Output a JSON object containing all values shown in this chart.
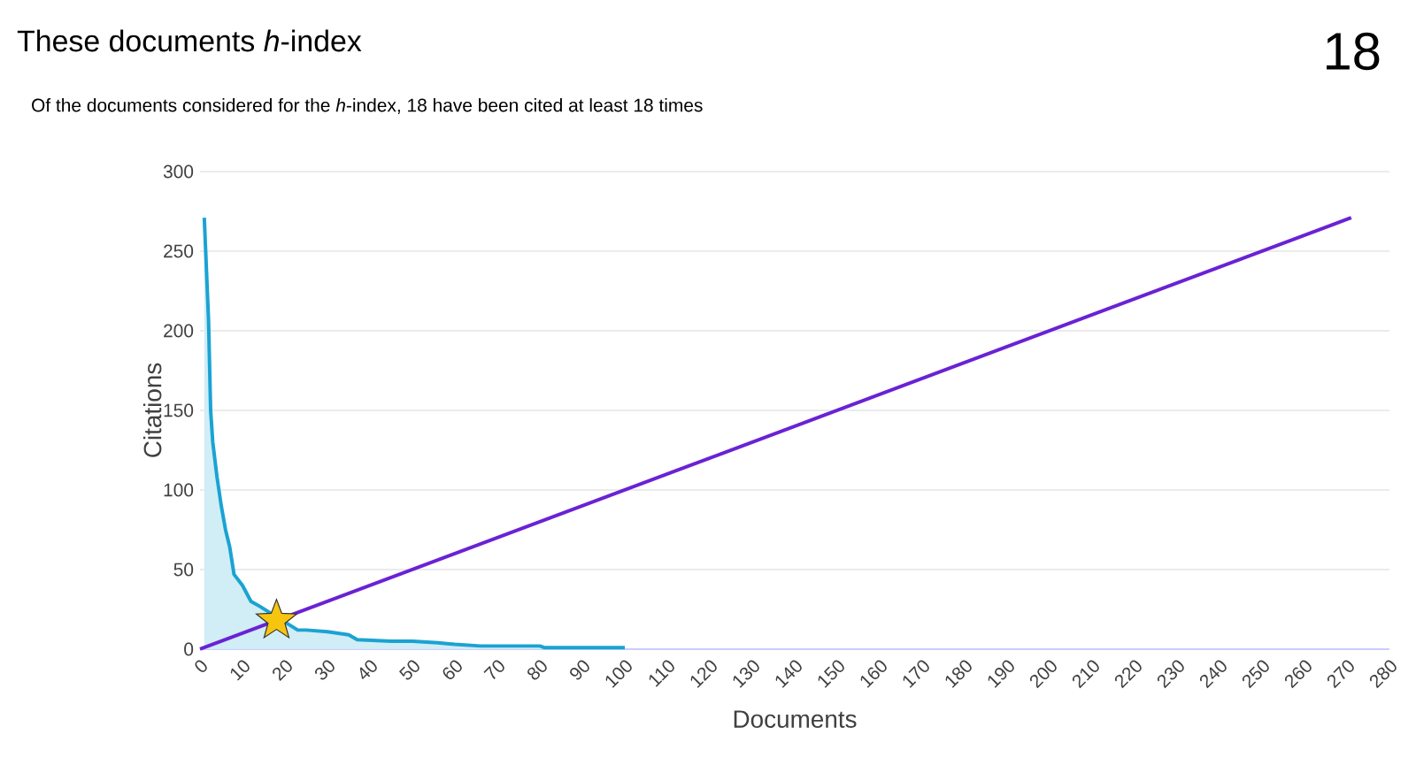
{
  "chart_data": {
    "type": "area",
    "title": "These documents *h*-index",
    "subtitle": "Of the documents considered for the *h*-index, 18 have been cited at least 18 times",
    "annotations": [
      "18"
    ],
    "xlabel": "Documents",
    "ylabel": "Citations",
    "xlim": [
      0,
      280
    ],
    "xticks": [
      0,
      10,
      20,
      30,
      40,
      50,
      60,
      70,
      80,
      90,
      100,
      110,
      120,
      130,
      140,
      150,
      160,
      170,
      180,
      190,
      200,
      210,
      220,
      230,
      240,
      250,
      260,
      270,
      280
    ],
    "ylim": [
      0,
      300
    ],
    "yticks": [
      0,
      50,
      100,
      150,
      200,
      250,
      300
    ],
    "grid": "y",
    "series": [
      {
        "color": "#1aa3d2",
        "marker": "none",
        "x": [
          1,
          2,
          2.5,
          3,
          4,
          5,
          6,
          7,
          8,
          10,
          12,
          14,
          23,
          25,
          30,
          35,
          37,
          45,
          50,
          56,
          60,
          66,
          70,
          80,
          81,
          90,
          100
        ],
        "values": [
          271,
          207,
          150,
          130,
          108,
          90,
          75,
          64,
          47,
          40,
          30,
          27,
          12,
          12,
          11,
          9,
          6,
          5,
          5,
          4,
          3,
          2,
          2,
          2,
          1,
          1,
          1
        ]
      },
      {
        "type": "line",
        "color": "#6a22d4",
        "marker": "none",
        "x": [
          0,
          271
        ],
        "values": [
          0,
          271
        ]
      },
      {
        "type": "scatter",
        "color": "#f6c510",
        "marker": "star",
        "x": [
          18
        ],
        "values": [
          18
        ]
      }
    ]
  }
}
